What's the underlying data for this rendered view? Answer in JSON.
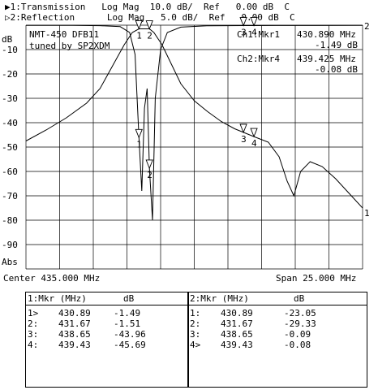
{
  "header": {
    "ch1_line": "▶1:Transmission   Log Mag  10.0 dB/  Ref   0.00 dB  C",
    "ch2_line": "▷2:Reflection      Log Mag   5.0 dB/  Ref   0.00 dB  C"
  },
  "chart_data": {
    "type": "line",
    "y_unit": "dB",
    "ylabel_bottom": "Abs",
    "ylim": [
      -100,
      0
    ],
    "y_ticks": [
      -10,
      -20,
      -30,
      -40,
      -50,
      -60,
      -70,
      -80,
      -90
    ],
    "xlim": [
      422.5,
      447.5
    ],
    "x_center_label": "Center 435.000 MHz",
    "x_span_label": "Span 25.000 MHz",
    "annotations": [
      "NMT-450 DFB11",
      "tuned by SP2XDM"
    ],
    "marker_readouts": [
      {
        "label": "Ch1:Mkr1",
        "freq": "430.890 MHz",
        "value": "-1.49 dB"
      },
      {
        "label": "Ch2:Mkr4",
        "freq": "439.425 MHz",
        "value": "-0.08 dB"
      }
    ],
    "channel_labels": [
      "1",
      "2"
    ],
    "series": [
      {
        "x": [
          422.5,
          424,
          425.5,
          427,
          428,
          429,
          429.8,
          430.4,
          430.89,
          431.3,
          431.67,
          432,
          432.6,
          433.3,
          434,
          435,
          436,
          437,
          438,
          438.65,
          439.43,
          440.5,
          441.3,
          441.9,
          442.4,
          442.9,
          443.6,
          444.5,
          445.5,
          446.5,
          447.5
        ],
        "y": [
          -47.5,
          -43,
          -38,
          -32,
          -26,
          -16,
          -8,
          -3,
          -1.49,
          -1.5,
          -1.51,
          -3,
          -8,
          -16,
          -24,
          -31,
          -35.5,
          -39.5,
          -42.5,
          -43.96,
          -45.69,
          -48,
          -54,
          -64,
          -70,
          -60,
          -56,
          -58,
          -63,
          -69,
          -75
        ]
      },
      {
        "x": [
          422.5,
          426,
          428,
          429.5,
          430.2,
          430.6,
          430.89,
          431.1,
          431.3,
          431.5,
          431.67,
          431.9,
          432.1,
          432.5,
          433,
          434,
          436,
          438.65,
          439.43,
          441,
          444,
          447.5
        ],
        "y": [
          -0.05,
          -0.05,
          -0.1,
          -0.3,
          -1.5,
          -6,
          -23.05,
          -34,
          -17,
          -13,
          -29.33,
          -40,
          -15,
          -5,
          -1.5,
          -0.4,
          -0.12,
          -0.09,
          -0.08,
          -0.07,
          -0.06,
          -0.05
        ]
      }
    ],
    "markers": [
      {
        "n": "1",
        "series": 0,
        "x": 430.89,
        "y": -1.49
      },
      {
        "n": "2",
        "series": 0,
        "x": 431.67,
        "y": -1.51
      },
      {
        "n": "3",
        "series": 0,
        "x": 438.65,
        "y": -43.96
      },
      {
        "n": "4",
        "series": 0,
        "x": 439.43,
        "y": -45.69
      },
      {
        "n": "1",
        "series": 1,
        "x": 430.89,
        "y": -23.05
      },
      {
        "n": "2",
        "series": 1,
        "x": 431.67,
        "y": -29.33
      },
      {
        "n": "3",
        "series": 1,
        "x": 438.65,
        "y": -0.09
      },
      {
        "n": "4",
        "series": 1,
        "x": 439.43,
        "y": -0.08
      }
    ]
  },
  "table_ch1": {
    "title": "1:Mkr (MHz)",
    "unit": "dB",
    "rows": [
      {
        "n": "1>",
        "freq": "430.89",
        "value": "-1.49"
      },
      {
        "n": "2:",
        "freq": "431.67",
        "value": "-1.51"
      },
      {
        "n": "3:",
        "freq": "438.65",
        "value": "-43.96"
      },
      {
        "n": "4:",
        "freq": "439.43",
        "value": "-45.69"
      }
    ]
  },
  "table_ch2": {
    "title": "2:Mkr (MHz)",
    "unit": "dB",
    "rows": [
      {
        "n": "1:",
        "freq": "430.89",
        "value": "-23.05"
      },
      {
        "n": "2:",
        "freq": "431.67",
        "value": "-29.33"
      },
      {
        "n": "3:",
        "freq": "438.65",
        "value": "-0.09"
      },
      {
        "n": "4>",
        "freq": "439.43",
        "value": "-0.08"
      }
    ]
  }
}
